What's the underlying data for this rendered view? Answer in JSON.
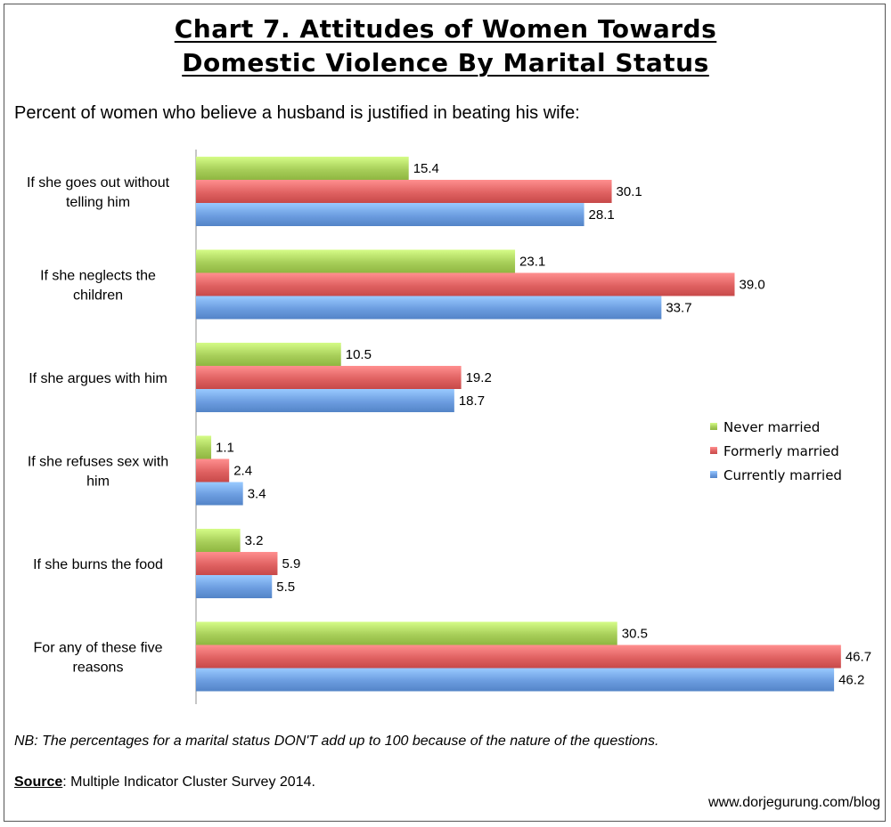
{
  "header": {
    "title_line1": "Chart 7. Attitudes of Women Towards",
    "title_line2": "Domestic Violence By Marital Status",
    "subtitle": "Percent of women who believe a husband is justified in beating his wife:"
  },
  "chart_data": {
    "type": "bar",
    "orientation": "horizontal",
    "categories": [
      [
        "If she goes out without",
        "telling him"
      ],
      [
        "If she neglects the",
        "children"
      ],
      [
        "If she argues with him"
      ],
      [
        "If she refuses sex with",
        "him"
      ],
      [
        "If she burns the food"
      ],
      [
        "For any of these five",
        "reasons"
      ]
    ],
    "series": [
      {
        "name": "Never married",
        "values": [
          15.4,
          23.1,
          10.5,
          1.1,
          3.2,
          30.5
        ],
        "color": "#a8cf5a"
      },
      {
        "name": "Formerly married",
        "values": [
          30.1,
          39.0,
          19.2,
          2.4,
          5.9,
          46.7
        ],
        "color": "#e06262"
      },
      {
        "name": "Currently married",
        "values": [
          28.1,
          33.7,
          18.7,
          3.4,
          5.5,
          46.2
        ],
        "color": "#6c9de0"
      }
    ],
    "xlim": [
      0,
      50
    ],
    "grid": false,
    "legend": "right"
  },
  "footer": {
    "note": "NB: The percentages for a marital status DON'T add up to 100 because of the nature of the questions.",
    "source_key": "Source",
    "source_text": ": Multiple Indicator Cluster Survey 2014.",
    "website": "www.dorjegurung.com/blog"
  }
}
